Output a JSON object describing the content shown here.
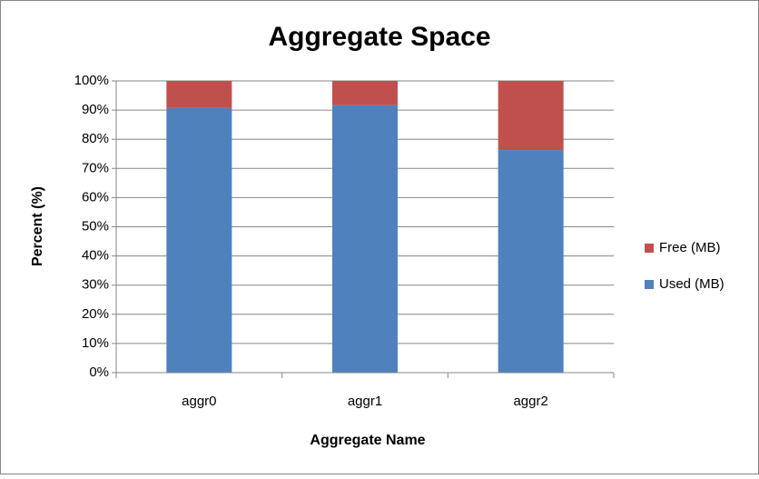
{
  "chart_data": {
    "type": "stacked_bar",
    "title": "Aggregate Space",
    "x_label": "Aggregate Name",
    "y_label": "Percent (%)",
    "categories": [
      "aggr0",
      "aggr1",
      "aggr2"
    ],
    "series": [
      {
        "name": "Used (MB)",
        "color": "#4f81bd",
        "values": [
          90.7,
          91.7,
          76.3
        ]
      },
      {
        "name": "Free (MB)",
        "color": "#c0504d",
        "values": [
          9.3,
          8.3,
          23.7
        ]
      }
    ],
    "ylim": [
      0,
      100
    ],
    "yticks": [
      {
        "value": 0,
        "label": "0%"
      },
      {
        "value": 10,
        "label": "10%"
      },
      {
        "value": 20,
        "label": "20%"
      },
      {
        "value": 30,
        "label": "30%"
      },
      {
        "value": 40,
        "label": "40%"
      },
      {
        "value": 50,
        "label": "50%"
      },
      {
        "value": 60,
        "label": "60%"
      },
      {
        "value": 70,
        "label": "70%"
      },
      {
        "value": 80,
        "label": "80%"
      },
      {
        "value": 90,
        "label": "90%"
      },
      {
        "value": 100,
        "label": "100%"
      }
    ],
    "grid": true,
    "legend": "right"
  }
}
